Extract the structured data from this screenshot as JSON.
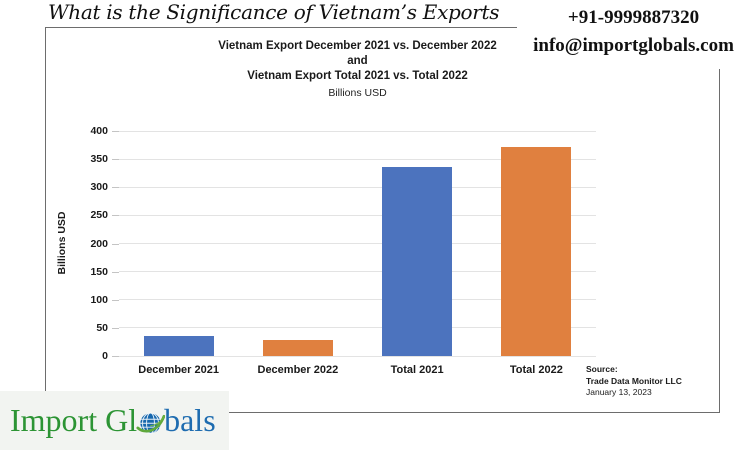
{
  "header": {
    "title": "What is the Significance of Vietnam’s Exports",
    "phone": "+91-9999887320",
    "email": "info@importglobals.com"
  },
  "logo": {
    "text_green": "Import Gl",
    "text_blue": "bals",
    "green_color": "#2c9434",
    "blue_color": "#1e6cb0"
  },
  "chart_data": {
    "type": "bar",
    "title_lines": [
      "Vietnam Export December 2021 vs. December 2022",
      "and",
      "Vietnam Export Total 2021 vs. Total 2022"
    ],
    "subtitle": "Billions USD",
    "ylabel": "Billions USD",
    "categories": [
      "December 2021",
      "December 2022",
      "Total 2021",
      "Total 2022"
    ],
    "values": [
      35,
      29,
      336,
      371
    ],
    "bar_colors": [
      "#4c73be",
      "#e0803f",
      "#4c73be",
      "#e0803f"
    ],
    "ylim": [
      0,
      400
    ],
    "yticks": [
      0,
      50,
      100,
      150,
      200,
      250,
      300,
      350,
      400
    ],
    "grid": "horizontal",
    "legend": "none",
    "source_lines": [
      "Source:",
      "Trade Data Monitor LLC",
      "January 13, 2023"
    ]
  }
}
